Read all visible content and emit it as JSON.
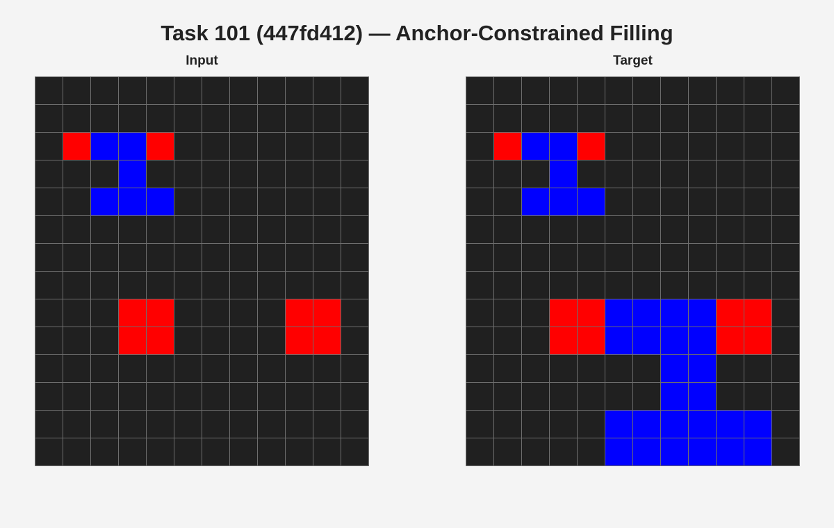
{
  "title": "Task 101 (447fd412) — Anchor-Constrained Filling",
  "palette": {
    "0": "#202020",
    "1": "#0000ff",
    "2": "#ff0000"
  },
  "panels": [
    {
      "id": "input",
      "label": "Input",
      "grid": [
        [
          0,
          0,
          0,
          0,
          0,
          0,
          0,
          0,
          0,
          0,
          0,
          0
        ],
        [
          0,
          0,
          0,
          0,
          0,
          0,
          0,
          0,
          0,
          0,
          0,
          0
        ],
        [
          0,
          2,
          1,
          1,
          2,
          0,
          0,
          0,
          0,
          0,
          0,
          0
        ],
        [
          0,
          0,
          0,
          1,
          0,
          0,
          0,
          0,
          0,
          0,
          0,
          0
        ],
        [
          0,
          0,
          1,
          1,
          1,
          0,
          0,
          0,
          0,
          0,
          0,
          0
        ],
        [
          0,
          0,
          0,
          0,
          0,
          0,
          0,
          0,
          0,
          0,
          0,
          0
        ],
        [
          0,
          0,
          0,
          0,
          0,
          0,
          0,
          0,
          0,
          0,
          0,
          0
        ],
        [
          0,
          0,
          0,
          0,
          0,
          0,
          0,
          0,
          0,
          0,
          0,
          0
        ],
        [
          0,
          0,
          0,
          2,
          2,
          0,
          0,
          0,
          0,
          2,
          2,
          0
        ],
        [
          0,
          0,
          0,
          2,
          2,
          0,
          0,
          0,
          0,
          2,
          2,
          0
        ],
        [
          0,
          0,
          0,
          0,
          0,
          0,
          0,
          0,
          0,
          0,
          0,
          0
        ],
        [
          0,
          0,
          0,
          0,
          0,
          0,
          0,
          0,
          0,
          0,
          0,
          0
        ],
        [
          0,
          0,
          0,
          0,
          0,
          0,
          0,
          0,
          0,
          0,
          0,
          0
        ],
        [
          0,
          0,
          0,
          0,
          0,
          0,
          0,
          0,
          0,
          0,
          0,
          0
        ]
      ]
    },
    {
      "id": "target",
      "label": "Target",
      "grid": [
        [
          0,
          0,
          0,
          0,
          0,
          0,
          0,
          0,
          0,
          0,
          0,
          0
        ],
        [
          0,
          0,
          0,
          0,
          0,
          0,
          0,
          0,
          0,
          0,
          0,
          0
        ],
        [
          0,
          2,
          1,
          1,
          2,
          0,
          0,
          0,
          0,
          0,
          0,
          0
        ],
        [
          0,
          0,
          0,
          1,
          0,
          0,
          0,
          0,
          0,
          0,
          0,
          0
        ],
        [
          0,
          0,
          1,
          1,
          1,
          0,
          0,
          0,
          0,
          0,
          0,
          0
        ],
        [
          0,
          0,
          0,
          0,
          0,
          0,
          0,
          0,
          0,
          0,
          0,
          0
        ],
        [
          0,
          0,
          0,
          0,
          0,
          0,
          0,
          0,
          0,
          0,
          0,
          0
        ],
        [
          0,
          0,
          0,
          0,
          0,
          0,
          0,
          0,
          0,
          0,
          0,
          0
        ],
        [
          0,
          0,
          0,
          2,
          2,
          1,
          1,
          1,
          1,
          2,
          2,
          0
        ],
        [
          0,
          0,
          0,
          2,
          2,
          1,
          1,
          1,
          1,
          2,
          2,
          0
        ],
        [
          0,
          0,
          0,
          0,
          0,
          0,
          0,
          1,
          1,
          0,
          0,
          0
        ],
        [
          0,
          0,
          0,
          0,
          0,
          0,
          0,
          1,
          1,
          0,
          0,
          0
        ],
        [
          0,
          0,
          0,
          0,
          0,
          1,
          1,
          1,
          1,
          1,
          1,
          0
        ],
        [
          0,
          0,
          0,
          0,
          0,
          1,
          1,
          1,
          1,
          1,
          1,
          0
        ]
      ]
    }
  ]
}
